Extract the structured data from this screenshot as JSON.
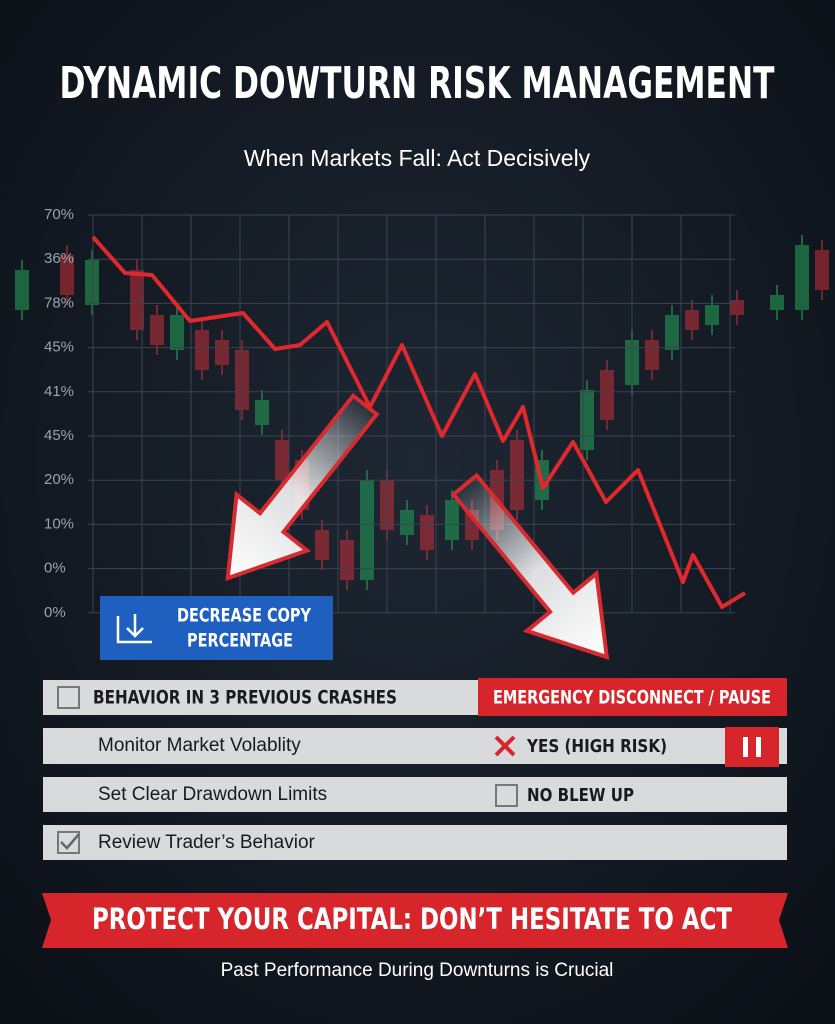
{
  "header": {
    "title": "DYNAMIC DOWTURN RISK MANAGEMENT",
    "subtitle": "When Markets Fall: Act Decisively"
  },
  "chart": {
    "y_labels": [
      "70%",
      "36%",
      "78%",
      "45%",
      "41%",
      "45%",
      "20%",
      "10%",
      "0%",
      "0%"
    ]
  },
  "button": {
    "label_line1": "DECREASE COPY",
    "label_line2": "PERCENTAGE"
  },
  "checklist": {
    "rows": [
      {
        "left": "BEHAVIOR IN 3 PREVIOUS CRASHES",
        "right": "EMERGENCY DISCONNECT / PAUSE"
      },
      {
        "left": "Monitor Market Volablity",
        "right": "YES (HIGH RISK)"
      },
      {
        "left": "Set Clear Drawdown Limits",
        "right": "NO BLEW UP"
      },
      {
        "left": "Review Trader’s Behavior"
      }
    ]
  },
  "banner": {
    "text": "PROTECT YOUR CAPITAL: DON’T HESITATE TO ACT"
  },
  "footer": {
    "text": "Past Performance During Downturns is Crucial"
  }
}
